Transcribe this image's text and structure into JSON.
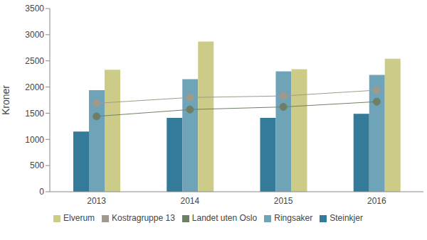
{
  "chart_data": {
    "type": "bar",
    "y_label": "Kroner",
    "categories": [
      "2013",
      "2014",
      "2015",
      "2016"
    ],
    "series": [
      {
        "name": "Steinkjer",
        "type": "bar",
        "color": "#347a99",
        "values": [
          1150,
          1410,
          1410,
          1490
        ]
      },
      {
        "name": "Ringsaker",
        "type": "bar",
        "color": "#6fa3b8",
        "values": [
          1940,
          2150,
          2300,
          2230
        ]
      },
      {
        "name": "Elverum",
        "type": "bar",
        "color": "#cccc88",
        "values": [
          2330,
          2870,
          2340,
          2540
        ]
      },
      {
        "name": "Landet uten Oslo",
        "type": "line",
        "color": "#6e7f66",
        "marker": "circle",
        "values": [
          1440,
          1570,
          1620,
          1720
        ]
      },
      {
        "name": "Kostragruppe 13",
        "type": "line",
        "color": "#a09a8c",
        "marker": "circle",
        "values": [
          1690,
          1800,
          1830,
          1940
        ]
      }
    ],
    "ylim": [
      0,
      3500
    ],
    "yticks": [
      0,
      500,
      1000,
      1500,
      2000,
      2500,
      3000,
      3500
    ],
    "grid": false,
    "legend": "bottom"
  }
}
